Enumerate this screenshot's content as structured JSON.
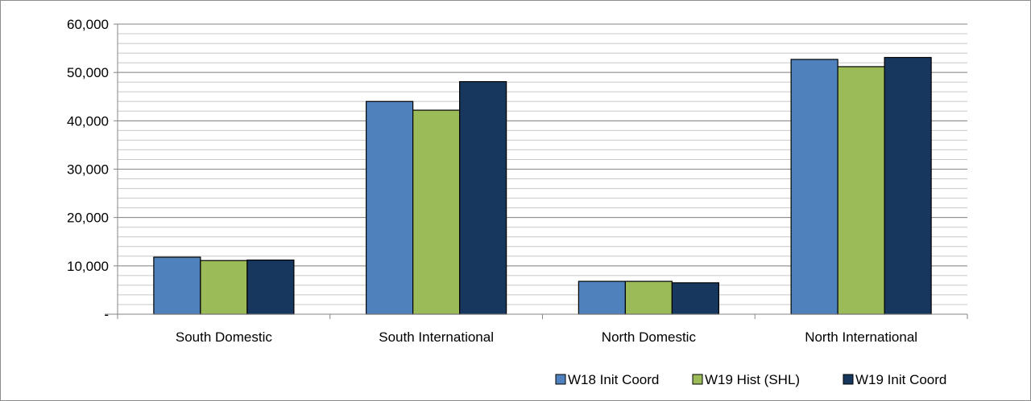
{
  "chart_data": {
    "type": "bar",
    "categories": [
      "South Domestic",
      "South International",
      "North Domestic",
      "North International"
    ],
    "series": [
      {
        "name": "W18 Init Coord",
        "color": "#4F81BD",
        "values": [
          11800,
          44000,
          6800,
          52700
        ]
      },
      {
        "name": "W19 Hist (SHL)",
        "color": "#9BBB59",
        "values": [
          11100,
          42200,
          6800,
          51200
        ]
      },
      {
        "name": "W19 Init Coord",
        "color": "#17375E",
        "values": [
          11200,
          48100,
          6500,
          53100
        ]
      }
    ],
    "y_ticks": [
      {
        "value": 0,
        "label": "-"
      },
      {
        "value": 10000,
        "label": "10,000"
      },
      {
        "value": 20000,
        "label": "20,000"
      },
      {
        "value": 30000,
        "label": "30,000"
      },
      {
        "value": 40000,
        "label": "40,000"
      },
      {
        "value": 50000,
        "label": "50,000"
      },
      {
        "value": 60000,
        "label": "60,000"
      }
    ],
    "ylim": [
      0,
      60000
    ],
    "minor_gridlines_step": 2000,
    "grid": true,
    "legend_position": "bottom-right",
    "title": "",
    "xlabel": "",
    "ylabel": ""
  }
}
